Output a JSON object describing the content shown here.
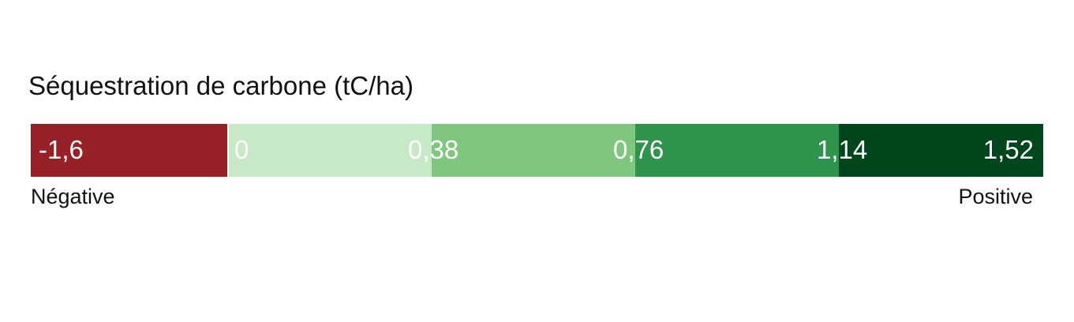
{
  "legend": {
    "title": "Séquestration de carbone (tC/ha)",
    "segments": [
      {
        "color": "#962026"
      },
      {
        "color": "#c8e9c5"
      },
      {
        "color": "#7fc77e"
      },
      {
        "color": "#2e944c"
      },
      {
        "color": "#00461c"
      }
    ],
    "ticks": [
      "-1,6",
      "0",
      "0,38",
      "0,76",
      "1,14",
      "1,52"
    ],
    "low_label": "Négative",
    "high_label": "Positive"
  }
}
